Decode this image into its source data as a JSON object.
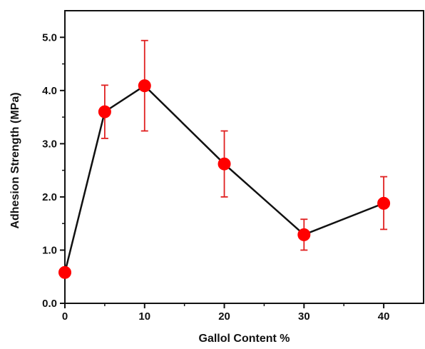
{
  "chart_data": {
    "type": "line",
    "title": "",
    "xlabel": "Gallol Content %",
    "ylabel": "Adhesion Strength (MPa)",
    "xlim": [
      0,
      45
    ],
    "ylim": [
      0,
      5.5
    ],
    "xticks": [
      0,
      10,
      20,
      30,
      40
    ],
    "xtick_labels": [
      "0",
      "10",
      "20",
      "30",
      "40"
    ],
    "yticks": [
      0,
      1,
      2,
      3,
      4,
      5
    ],
    "ytick_labels": [
      "0.0",
      "1.0",
      "2.0",
      "3.0",
      "4.0",
      "5.0"
    ],
    "grid": false,
    "legend": "none",
    "series": [
      {
        "x": [
          0,
          5,
          10,
          20,
          30,
          40
        ],
        "y": [
          0.58,
          3.6,
          4.09,
          2.62,
          1.29,
          1.88
        ],
        "y_err_low": [
          0.58,
          3.1,
          3.24,
          2.0,
          1.0,
          1.39
        ],
        "y_err_high": [
          0.58,
          4.1,
          4.94,
          3.24,
          1.58,
          2.38
        ],
        "line_color": "#111111",
        "marker_color": "#ff0000",
        "error_bar_color": "#e02020"
      }
    ]
  }
}
